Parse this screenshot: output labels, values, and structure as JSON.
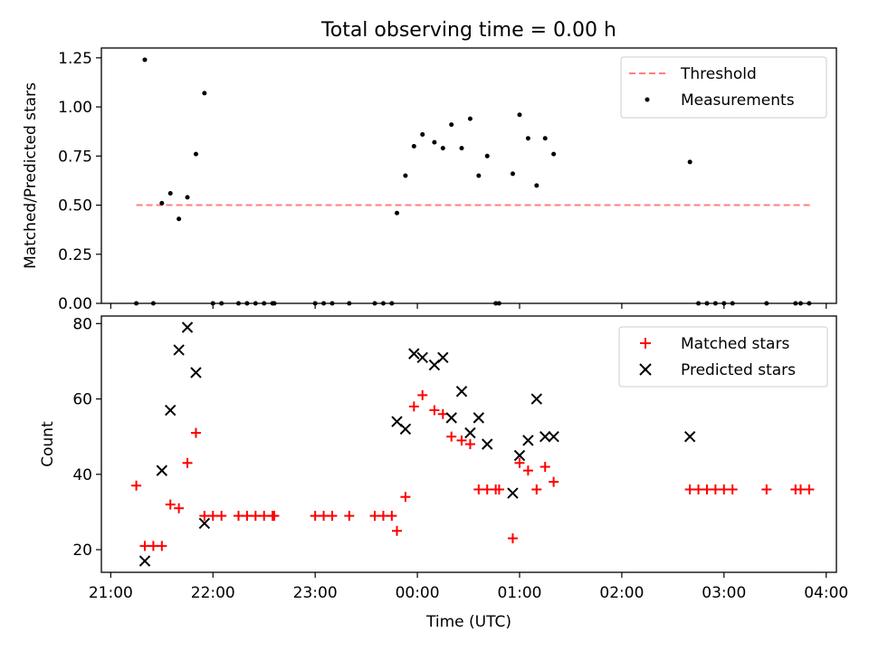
{
  "chart_data": [
    {
      "type": "scatter",
      "title": "Total observing time = 0.00 h",
      "xlabel": "",
      "ylabel": "Matched/Predicted stars",
      "x_unit": "UTC time",
      "xlim": [
        "21:00",
        "04:00"
      ],
      "ylim": [
        0,
        1.3
      ],
      "yticks": [
        0.0,
        0.25,
        0.5,
        0.75,
        1.0,
        1.25
      ],
      "ytick_labels": [
        "0.00",
        "0.25",
        "0.50",
        "0.75",
        "1.00",
        "1.25"
      ],
      "xtick_labels_hidden": true,
      "legend_position": "top-right",
      "series": [
        {
          "name": "Threshold",
          "style": "dashed-line",
          "color": "#ff7f7f",
          "points": [
            [
              "21:15",
              0.5
            ],
            [
              "03:52",
              0.5
            ]
          ]
        },
        {
          "name": "Measurements",
          "style": "dot",
          "color": "#000000",
          "points": [
            [
              "21:15",
              0.0
            ],
            [
              "21:20",
              1.24
            ],
            [
              "21:25",
              0.0
            ],
            [
              "21:30",
              0.51
            ],
            [
              "21:35",
              0.56
            ],
            [
              "21:40",
              0.43
            ],
            [
              "21:45",
              0.54
            ],
            [
              "21:50",
              0.76
            ],
            [
              "21:55",
              1.07
            ],
            [
              "22:00",
              0.0
            ],
            [
              "22:05",
              0.0
            ],
            [
              "22:15",
              0.0
            ],
            [
              "22:20",
              0.0
            ],
            [
              "22:25",
              0.0
            ],
            [
              "22:30",
              0.0
            ],
            [
              "22:35",
              0.0
            ],
            [
              "22:36",
              0.0
            ],
            [
              "23:00",
              0.0
            ],
            [
              "23:05",
              0.0
            ],
            [
              "23:10",
              0.0
            ],
            [
              "23:20",
              0.0
            ],
            [
              "23:35",
              0.0
            ],
            [
              "23:40",
              0.0
            ],
            [
              "23:45",
              0.0
            ],
            [
              "23:48",
              0.46
            ],
            [
              "23:53",
              0.65
            ],
            [
              "23:58",
              0.8
            ],
            [
              "00:03",
              0.86
            ],
            [
              "00:10",
              0.82
            ],
            [
              "00:15",
              0.79
            ],
            [
              "00:20",
              0.91
            ],
            [
              "00:26",
              0.79
            ],
            [
              "00:31",
              0.94
            ],
            [
              "00:36",
              0.65
            ],
            [
              "00:41",
              0.75
            ],
            [
              "00:46",
              0.0
            ],
            [
              "00:48",
              0.0
            ],
            [
              "00:56",
              0.66
            ],
            [
              "01:00",
              0.96
            ],
            [
              "01:05",
              0.84
            ],
            [
              "01:10",
              0.6
            ],
            [
              "01:15",
              0.84
            ],
            [
              "01:20",
              0.76
            ],
            [
              "02:40",
              0.72
            ],
            [
              "02:45",
              0.0
            ],
            [
              "02:50",
              0.0
            ],
            [
              "02:55",
              0.0
            ],
            [
              "03:00",
              0.0
            ],
            [
              "03:05",
              0.0
            ],
            [
              "03:25",
              0.0
            ],
            [
              "03:42",
              0.0
            ],
            [
              "03:45",
              0.0
            ],
            [
              "03:50",
              0.0
            ]
          ]
        }
      ]
    },
    {
      "type": "scatter",
      "title": "",
      "xlabel": "Time (UTC)",
      "ylabel": "Count",
      "xlim": [
        "21:00",
        "04:00"
      ],
      "ylim": [
        14,
        82
      ],
      "yticks": [
        20,
        40,
        60,
        80
      ],
      "ytick_labels": [
        "20",
        "40",
        "60",
        "80"
      ],
      "xticks": [
        "21:00",
        "22:00",
        "23:00",
        "00:00",
        "01:00",
        "02:00",
        "03:00",
        "04:00"
      ],
      "xtick_labels": [
        "21:00",
        "22:00",
        "23:00",
        "00:00",
        "01:00",
        "02:00",
        "03:00",
        "04:00"
      ],
      "legend_position": "top-right",
      "series": [
        {
          "name": "Matched stars",
          "style": "plus",
          "color": "#ff0000",
          "points": [
            [
              "21:15",
              37
            ],
            [
              "21:20",
              21
            ],
            [
              "21:25",
              21
            ],
            [
              "21:30",
              21
            ],
            [
              "21:35",
              32
            ],
            [
              "21:40",
              31
            ],
            [
              "21:45",
              43
            ],
            [
              "21:50",
              51
            ],
            [
              "21:55",
              29
            ],
            [
              "22:00",
              29
            ],
            [
              "22:05",
              29
            ],
            [
              "22:15",
              29
            ],
            [
              "22:20",
              29
            ],
            [
              "22:25",
              29
            ],
            [
              "22:30",
              29
            ],
            [
              "22:35",
              29
            ],
            [
              "22:36",
              29
            ],
            [
              "23:00",
              29
            ],
            [
              "23:05",
              29
            ],
            [
              "23:10",
              29
            ],
            [
              "23:20",
              29
            ],
            [
              "23:35",
              29
            ],
            [
              "23:40",
              29
            ],
            [
              "23:45",
              29
            ],
            [
              "23:48",
              25
            ],
            [
              "23:53",
              34
            ],
            [
              "23:58",
              58
            ],
            [
              "00:03",
              61
            ],
            [
              "00:10",
              57
            ],
            [
              "00:15",
              56
            ],
            [
              "00:20",
              50
            ],
            [
              "00:26",
              49
            ],
            [
              "00:31",
              48
            ],
            [
              "00:36",
              36
            ],
            [
              "00:41",
              36
            ],
            [
              "00:46",
              36
            ],
            [
              "00:48",
              36
            ],
            [
              "00:56",
              23
            ],
            [
              "01:00",
              43
            ],
            [
              "01:05",
              41
            ],
            [
              "01:10",
              36
            ],
            [
              "01:15",
              42
            ],
            [
              "01:20",
              38
            ],
            [
              "02:40",
              36
            ],
            [
              "02:45",
              36
            ],
            [
              "02:50",
              36
            ],
            [
              "02:55",
              36
            ],
            [
              "03:00",
              36
            ],
            [
              "03:05",
              36
            ],
            [
              "03:25",
              36
            ],
            [
              "03:42",
              36
            ],
            [
              "03:45",
              36
            ],
            [
              "03:50",
              36
            ]
          ]
        },
        {
          "name": "Predicted stars",
          "style": "x",
          "color": "#000000",
          "points": [
            [
              "21:20",
              17
            ],
            [
              "21:30",
              41
            ],
            [
              "21:35",
              57
            ],
            [
              "21:40",
              73
            ],
            [
              "21:45",
              79
            ],
            [
              "21:50",
              67
            ],
            [
              "21:55",
              27
            ],
            [
              "23:48",
              54
            ],
            [
              "23:53",
              52
            ],
            [
              "23:58",
              72
            ],
            [
              "00:03",
              71
            ],
            [
              "00:10",
              69
            ],
            [
              "00:15",
              71
            ],
            [
              "00:20",
              55
            ],
            [
              "00:26",
              62
            ],
            [
              "00:31",
              51
            ],
            [
              "00:36",
              55
            ],
            [
              "00:41",
              48
            ],
            [
              "00:56",
              35
            ],
            [
              "01:00",
              45
            ],
            [
              "01:05",
              49
            ],
            [
              "01:10",
              60
            ],
            [
              "01:15",
              50
            ],
            [
              "01:20",
              50
            ],
            [
              "02:40",
              50
            ]
          ]
        }
      ]
    }
  ]
}
